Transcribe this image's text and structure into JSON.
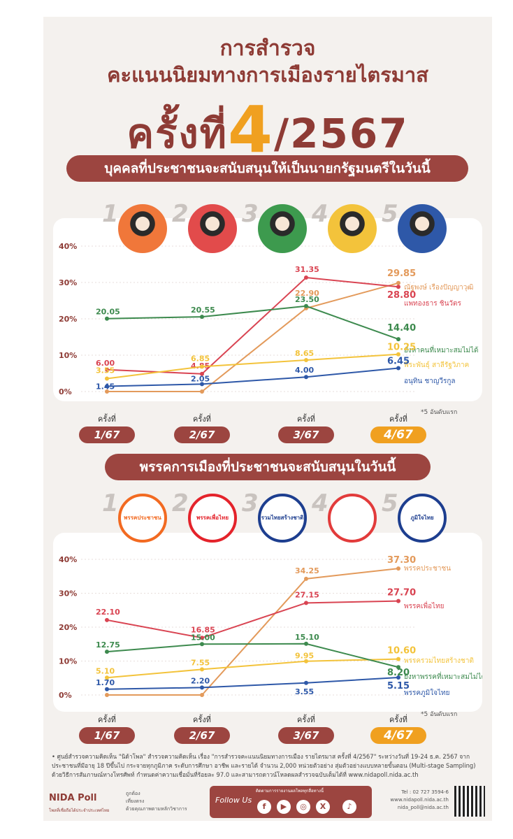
{
  "header": {
    "title_line1": "การสำรวจ",
    "title_line2": "คะแนนนิยมทางการเมืองรายไตรมาส",
    "round_prefix": "ครั้งที่",
    "round_number": "4",
    "round_suffix": "/2567"
  },
  "section1": {
    "banner": "บุคคลที่ประชาชนจะสนับสนุนให้เป็นนายกรัฐมนตรีในวันนี้",
    "ranks": [
      "1",
      "2",
      "3",
      "4",
      "5"
    ]
  },
  "section2": {
    "banner": "พรรคการเมืองที่ประชาชนจะสนับสนุนในวันนี้",
    "ranks": [
      "1",
      "2",
      "3",
      "4",
      "5"
    ],
    "logos": [
      {
        "label": "พรรคประชาชน",
        "color": "#f26a21"
      },
      {
        "label": "พรรคเพื่อไทย",
        "color": "#e4232b"
      },
      {
        "label": "รวมไทยสร้างชาติ",
        "color": "#1d3e8f"
      },
      {
        "label": "",
        "color": "#e23b3b"
      },
      {
        "label": "ภูมิใจไทย",
        "color": "#1d3e8f"
      }
    ]
  },
  "rounds": {
    "prefix": "ครั้งที่",
    "labels": [
      "1/67",
      "2/67",
      "3/67",
      "4/67"
    ]
  },
  "note": "*5 อันดับแรก",
  "chart_data": [
    {
      "type": "line",
      "ylim": [
        0,
        40
      ],
      "yticks": [
        "0%",
        "10%",
        "20%",
        "30%",
        "40%"
      ],
      "series": [
        {
          "name": "ณัฐพงษ์ เรืองปัญญาวุฒิ",
          "color": "#e39a5b",
          "values": [
            0,
            0,
            22.9,
            29.85
          ],
          "labels": [
            "",
            "",
            "22.90",
            "29.85"
          ]
        },
        {
          "name": "แพทองธาร ชินวัตร",
          "color": "#d94452",
          "values": [
            6.0,
            4.85,
            31.35,
            28.8
          ],
          "labels": [
            "6.00",
            "4.85",
            "31.35",
            "28.80"
          ]
        },
        {
          "name": "ยังหาคนที่เหมาะสมไม่ได้",
          "color": "#3d8a4e",
          "values": [
            20.05,
            20.55,
            23.5,
            14.4
          ],
          "labels": [
            "20.05",
            "20.55",
            "23.50",
            "14.40"
          ]
        },
        {
          "name": "พีระพันธุ์ สาลีรัฐวิภาค",
          "color": "#f3c33b",
          "values": [
            3.55,
            6.85,
            8.65,
            10.25
          ],
          "labels": [
            "3.55",
            "6.85",
            "8.65",
            "10.25"
          ]
        },
        {
          "name": "อนุทิน ชาญวีรกูล",
          "color": "#2e58a8",
          "values": [
            1.45,
            2.05,
            4.0,
            6.45
          ],
          "labels": [
            "1.45",
            "2.05",
            "4.00",
            "6.45"
          ]
        }
      ]
    },
    {
      "type": "line",
      "ylim": [
        0,
        40
      ],
      "yticks": [
        "0%",
        "10%",
        "20%",
        "30%",
        "40%"
      ],
      "series": [
        {
          "name": "พรรคประชาชน",
          "color": "#e39a5b",
          "values": [
            0,
            0,
            34.25,
            37.3
          ],
          "labels": [
            "",
            "",
            "34.25",
            "37.30"
          ]
        },
        {
          "name": "พรรคเพื่อไทย",
          "color": "#d94452",
          "values": [
            22.1,
            16.85,
            27.15,
            27.7
          ],
          "labels": [
            "22.10",
            "16.85",
            "27.15",
            "27.70"
          ]
        },
        {
          "name": "พรรครวมไทยสร้างชาติ",
          "color": "#f3c33b",
          "values": [
            5.1,
            7.55,
            9.95,
            10.6
          ],
          "labels": [
            "5.10",
            "7.55",
            "9.95",
            "10.60"
          ]
        },
        {
          "name": "ยังหาพรรคที่เหมาะสมไม่ได้",
          "color": "#3d8a4e",
          "values": [
            12.75,
            15.0,
            15.1,
            8.2
          ],
          "labels": [
            "12.75",
            "15.00",
            "15.10",
            "8.20"
          ]
        },
        {
          "name": "พรรคภูมิใจไทย",
          "color": "#2e58a8",
          "values": [
            1.7,
            2.2,
            3.55,
            5.15
          ],
          "labels": [
            "1.70",
            "2.20",
            "3.55",
            "5.15"
          ]
        }
      ]
    }
  ],
  "footer": {
    "source": "• ศูนย์สำรวจความคิดเห็น \"นิด้าโพล\" สำรวจความคิดเห็น เรื่อง \"การสำรวจคะแนนนิยมทางการเมือง รายไตรมาส ครั้งที่ 4/2567\" ระหว่างวันที่ 19-24 ธ.ค. 2567 จากประชาชนที่มีอายุ 18 ปีขึ้นไป กระจายทุกภูมิภาค ระดับการศึกษา อาชีพ และรายได้ จำนวน 2,000 หน่วยตัวอย่าง สุ่มตัวอย่างแบบหลายขั้นตอน (Multi-stage Sampling) ด้วยวิธีการสัมภาษณ์ทางโทรศัพท์ กำหนดค่าความเชื่อมั่นที่ร้อยละ 97.0 และสามารถดาวน์โหลดผลสำรวจฉบับเต็มได้ที่ www.nidapoll.nida.ac.th",
    "brand": "NIDA Poll",
    "brand_sub": "โพลที่เชื่อถือได้ประจำประเทศไทย",
    "links": "ถูกต้อง\nเที่ยงตรง\nด้วยคุณภาพตามหลักวิชาการ",
    "follow": "Follow Us",
    "follow_sub": "ติดตามการรายงานผลโพลทุกสื่อทางนี้",
    "contact": "Tel : 02 727 3594-6\nwww.nidapoll.nida.ac.th\nnida_poll@nida.ac.th",
    "social": [
      "f",
      "▶",
      "◎",
      "X",
      "♪"
    ]
  }
}
